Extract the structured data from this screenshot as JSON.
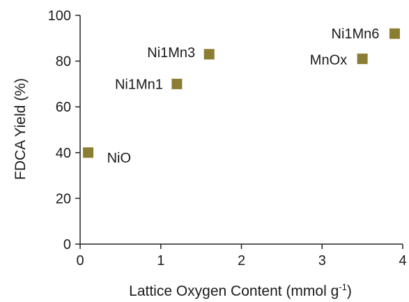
{
  "chart_data": {
    "type": "scatter",
    "xlabel": "Lattice Oxygen Content (mmol g",
    "xlabel_superscript": "-1",
    "xlabel_suffix": ")",
    "ylabel": "FDCA Yield (%)",
    "xlim": [
      0,
      4
    ],
    "ylim": [
      0,
      100
    ],
    "xticks": [
      0,
      1,
      2,
      3,
      4
    ],
    "yticks": [
      0,
      20,
      40,
      60,
      80,
      100
    ],
    "grid": false,
    "marker_color": "#8b7d32",
    "points": [
      {
        "label": "NiO",
        "x": 0.1,
        "y": 40
      },
      {
        "label": "Ni1Mn1",
        "x": 1.2,
        "y": 70
      },
      {
        "label": "Ni1Mn3",
        "x": 1.6,
        "y": 83
      },
      {
        "label": "MnOx",
        "x": 3.5,
        "y": 81
      },
      {
        "label": "Ni1Mn6",
        "x": 3.9,
        "y": 92
      }
    ]
  }
}
